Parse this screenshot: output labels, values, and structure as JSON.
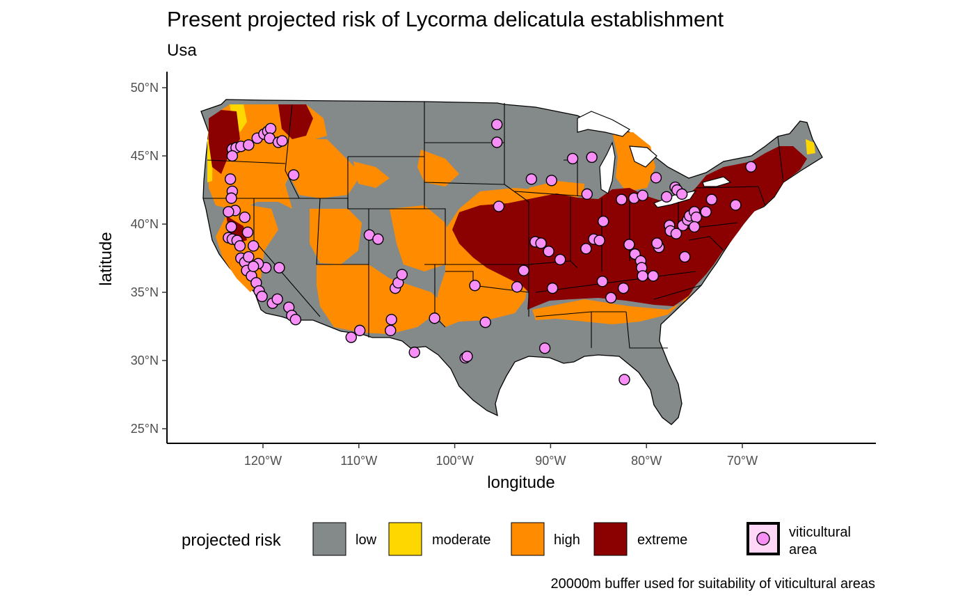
{
  "title": "Present projected risk of Lycorma delicatula establishment",
  "subtitle": "Usa",
  "caption": "20000m buffer used for suitability of viticultural areas",
  "axes": {
    "x": {
      "label": "longitude",
      "ticks": [
        "120°W",
        "110°W",
        "100°W",
        "90°W",
        "80°W",
        "70°W"
      ],
      "tick_values": [
        -120,
        -110,
        -100,
        -90,
        -80,
        -70
      ],
      "range": [
        -128,
        -62
      ]
    },
    "y": {
      "label": "latitude",
      "ticks": [
        "25°N",
        "30°N",
        "35°N",
        "40°N",
        "45°N",
        "50°N"
      ],
      "tick_values": [
        25,
        30,
        35,
        40,
        45,
        50
      ],
      "range": [
        23.9,
        51.2
      ]
    }
  },
  "legend": {
    "title": "projected risk",
    "placement": "bottom",
    "items": [
      {
        "label": "low",
        "color": "#848a89"
      },
      {
        "label": "moderate",
        "color": "#ffd700"
      },
      {
        "label": "high",
        "color": "#ff8c00"
      },
      {
        "label": "extreme",
        "color": "#8b0000"
      }
    ],
    "point": {
      "label_line1": "viticultural",
      "label_line2": "area",
      "color": "#f78ff7"
    }
  },
  "map": {
    "region": "conterminous United States",
    "risk_colors": {
      "low": "#848a89",
      "moderate": "#ffd700",
      "high": "#ff8c00",
      "extreme": "#8b0000"
    },
    "viticultural_areas": [
      [
        -123.2,
        45.5
      ],
      [
        -122.8,
        45.6
      ],
      [
        -122.3,
        45.7
      ],
      [
        -121.5,
        45.8
      ],
      [
        -120.6,
        46.3
      ],
      [
        -119.9,
        46.6
      ],
      [
        -119.5,
        46.8
      ],
      [
        -119.2,
        47.0
      ],
      [
        -119.3,
        46.3
      ],
      [
        -118.4,
        46.0
      ],
      [
        -118.0,
        46.1
      ],
      [
        -116.8,
        43.6
      ],
      [
        -123.2,
        45.0
      ],
      [
        -123.4,
        43.3
      ],
      [
        -123.2,
        42.4
      ],
      [
        -123.3,
        41.9
      ],
      [
        -122.9,
        41.0
      ],
      [
        -123.6,
        40.9
      ],
      [
        -121.9,
        40.5
      ],
      [
        -123.3,
        39.8
      ],
      [
        -123.6,
        39.0
      ],
      [
        -123.2,
        38.9
      ],
      [
        -122.7,
        38.8
      ],
      [
        -121.6,
        39.4
      ],
      [
        -121.0,
        38.4
      ],
      [
        -122.4,
        38.4
      ],
      [
        -122.3,
        37.5
      ],
      [
        -121.9,
        37.2
      ],
      [
        -121.7,
        36.6
      ],
      [
        -121.2,
        36.2
      ],
      [
        -120.7,
        35.7
      ],
      [
        -120.4,
        35.1
      ],
      [
        -120.1,
        34.7
      ],
      [
        -119.0,
        34.2
      ],
      [
        -118.5,
        34.5
      ],
      [
        -117.3,
        33.9
      ],
      [
        -117.0,
        33.3
      ],
      [
        -116.6,
        33.0
      ],
      [
        -119.7,
        36.8
      ],
      [
        -118.3,
        36.8
      ],
      [
        -120.5,
        37.1
      ],
      [
        -121.5,
        37.6
      ],
      [
        -121.0,
        36.9
      ],
      [
        -110.8,
        31.7
      ],
      [
        -109.9,
        32.2
      ],
      [
        -108.9,
        39.2
      ],
      [
        -108.0,
        38.9
      ],
      [
        -106.7,
        32.2
      ],
      [
        -106.6,
        33.0
      ],
      [
        -106.2,
        35.3
      ],
      [
        -105.9,
        35.7
      ],
      [
        -105.5,
        36.3
      ],
      [
        -104.2,
        30.6
      ],
      [
        -102.1,
        33.1
      ],
      [
        -98.9,
        30.2
      ],
      [
        -98.7,
        30.3
      ],
      [
        -97.9,
        35.5
      ],
      [
        -95.6,
        47.3
      ],
      [
        -95.6,
        46.0
      ],
      [
        -95.4,
        41.3
      ],
      [
        -92.0,
        43.3
      ],
      [
        -91.6,
        38.7
      ],
      [
        -91.0,
        38.6
      ],
      [
        -90.2,
        38.0
      ],
      [
        -89.9,
        43.2
      ],
      [
        -89.8,
        35.3
      ],
      [
        -89.0,
        37.4
      ],
      [
        -87.7,
        44.8
      ],
      [
        -85.7,
        44.9
      ],
      [
        -86.2,
        42.2
      ],
      [
        -86.3,
        38.2
      ],
      [
        -85.5,
        38.9
      ],
      [
        -84.9,
        38.8
      ],
      [
        -84.5,
        40.2
      ],
      [
        -84.6,
        35.8
      ],
      [
        -83.7,
        34.6
      ],
      [
        -82.4,
        35.3
      ],
      [
        -82.6,
        41.8
      ],
      [
        -81.3,
        41.9
      ],
      [
        -81.8,
        38.5
      ],
      [
        -81.2,
        37.8
      ],
      [
        -80.6,
        37.3
      ],
      [
        -80.5,
        36.8
      ],
      [
        -80.4,
        36.2
      ],
      [
        -79.3,
        36.2
      ],
      [
        -80.4,
        42.1
      ],
      [
        -79.0,
        43.4
      ],
      [
        -78.7,
        38.3
      ],
      [
        -78.9,
        38.6
      ],
      [
        -77.9,
        42.0
      ],
      [
        -77.6,
        39.9
      ],
      [
        -77.5,
        39.5
      ],
      [
        -77.0,
        42.7
      ],
      [
        -76.8,
        42.5
      ],
      [
        -76.3,
        42.2
      ],
      [
        -76.9,
        39.3
      ],
      [
        -76.2,
        39.9
      ],
      [
        -75.7,
        40.3
      ],
      [
        -75.5,
        40.6
      ],
      [
        -75.0,
        40.9
      ],
      [
        -74.8,
        40.5
      ],
      [
        -75.0,
        39.8
      ],
      [
        -76.0,
        37.6
      ],
      [
        -73.8,
        40.9
      ],
      [
        -73.2,
        41.8
      ],
      [
        -70.7,
        41.4
      ],
      [
        -69.1,
        44.2
      ],
      [
        -96.8,
        32.8
      ],
      [
        -82.3,
        28.6
      ],
      [
        -93.5,
        35.4
      ],
      [
        -92.8,
        36.6
      ],
      [
        -90.6,
        30.9
      ]
    ]
  }
}
